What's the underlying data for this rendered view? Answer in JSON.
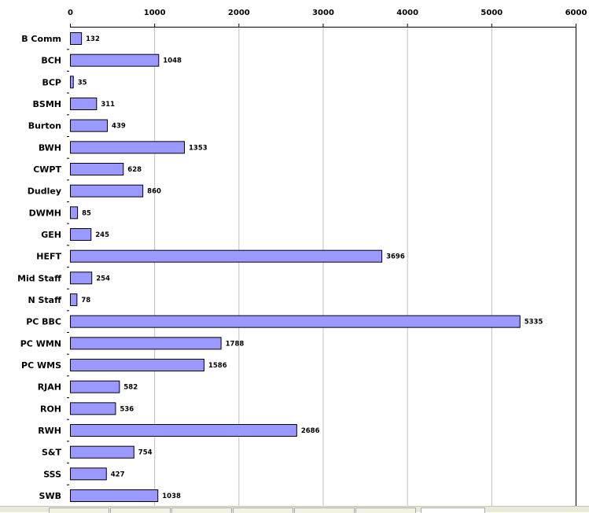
{
  "chart_data": {
    "type": "bar",
    "orientation": "horizontal",
    "title": "",
    "xlabel": "",
    "ylabel": "",
    "xlim": [
      0,
      6000
    ],
    "x_ticks": [
      "0",
      "1000",
      "2000",
      "3000",
      "4000",
      "5000",
      "6000"
    ],
    "x_tick_values": [
      0,
      1000,
      2000,
      3000,
      4000,
      5000,
      6000
    ],
    "grid": true,
    "axis_position": "top",
    "bar_color": "#9999ff",
    "categories": [
      "B Comm",
      "BCH",
      "BCP",
      "BSMH",
      "Burton",
      "BWH",
      "CWPT",
      "Dudley",
      "DWMH",
      "GEH",
      "HEFT",
      "Mid Staff",
      "N Staff",
      "PC BBC",
      "PC WMN",
      "PC WMS",
      "RJAH",
      "ROH",
      "RWH",
      "S&T",
      "SSS",
      "SWB"
    ],
    "values": [
      132,
      1048,
      35,
      311,
      439,
      1353,
      628,
      860,
      85,
      245,
      3696,
      254,
      78,
      5335,
      1788,
      1586,
      582,
      536,
      2686,
      754,
      427,
      1038
    ]
  }
}
